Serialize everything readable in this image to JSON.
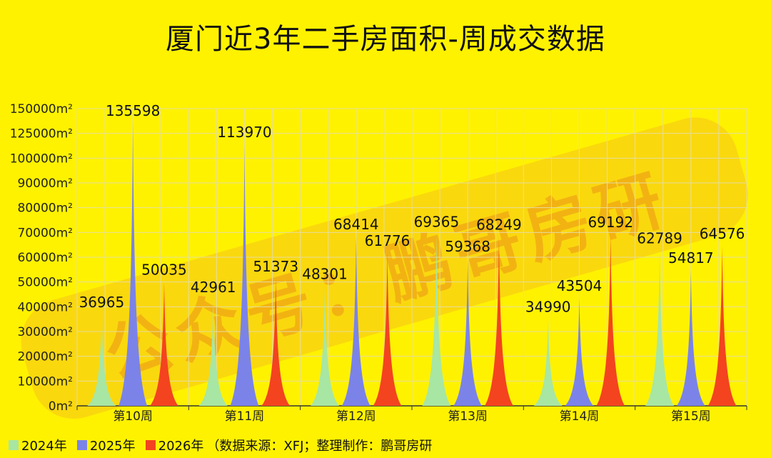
{
  "chart_data": {
    "type": "area",
    "title": "厦门近3年二手房面积-周成交数据",
    "categories": [
      "第10周",
      "第11周",
      "第12周",
      "第13周",
      "第14周",
      "第15周"
    ],
    "series": [
      {
        "name": "2024年",
        "color": "#A8E6A3",
        "values": [
          36965,
          42961,
          48301,
          69365,
          34990,
          62789
        ]
      },
      {
        "name": "2025年",
        "color": "#7B83E8",
        "values": [
          135598,
          113970,
          68414,
          59368,
          43504,
          54817
        ]
      },
      {
        "name": "2026年",
        "color": "#F4431F",
        "values": [
          50035,
          51373,
          61776,
          68249,
          69192,
          64576
        ]
      }
    ],
    "yticks": [
      "0m²",
      "10000m²",
      "20000m²",
      "30000m²",
      "40000m²",
      "50000m²",
      "60000m²",
      "70000m²",
      "80000m²",
      "90000m²",
      "100000m²",
      "125000m²",
      "150000m²"
    ],
    "ylim": [
      0,
      150000
    ],
    "grid": true,
    "legend_position": "bottom-left"
  },
  "legend": {
    "note": "（数据来源：XFJ；整理制作：鹏哥房研"
  },
  "watermark": "公众号：鹏哥房研"
}
